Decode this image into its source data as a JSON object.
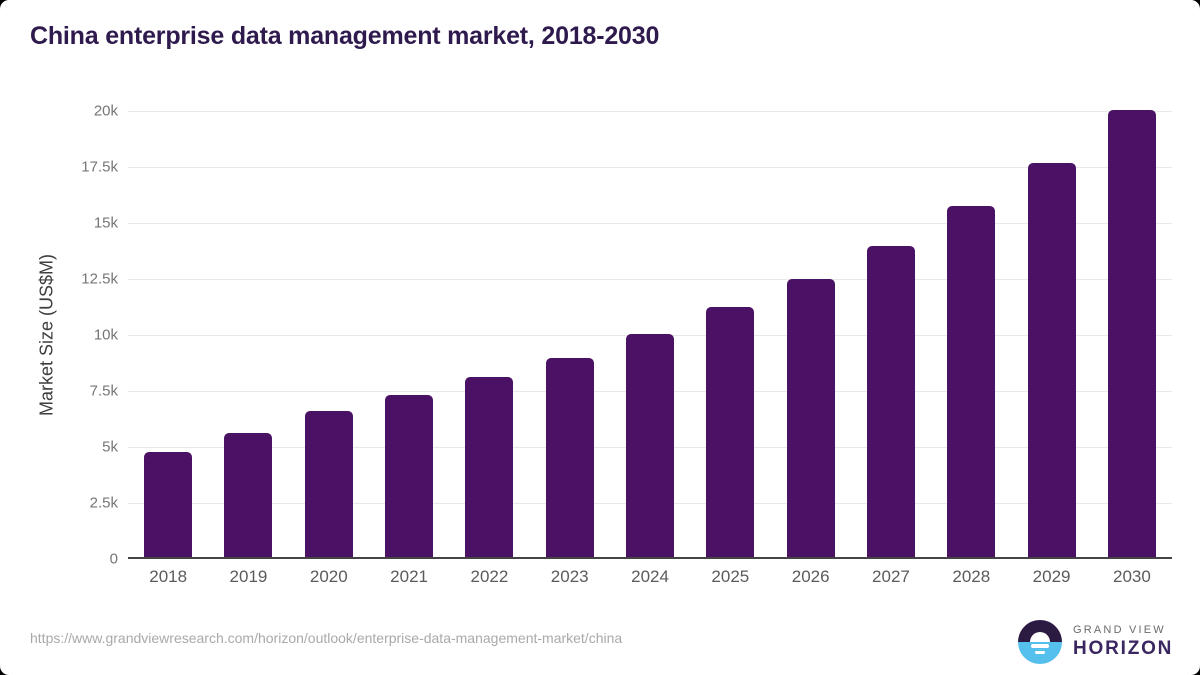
{
  "page": {
    "title": "China enterprise data management market, 2018-2030",
    "footer": {
      "source_url": "https://www.grandviewresearch.com/horizon/outlook/enterprise-data-management-market/china",
      "brand_line1": "GRAND VIEW",
      "brand_line2": "HORIZON"
    }
  },
  "colors": {
    "bar": "#4a1164",
    "title": "#2f1a4e",
    "grid": "#e8e8e8",
    "axis_line": "#444444",
    "y_tick": "#757575",
    "x_tick": "#5b5b5b",
    "url": "#a9a9a9",
    "logo_dark": "#2b1b43",
    "logo_blue": "#54c0eb",
    "brand_gray": "#6b6b6b",
    "brand_purple": "#3a2660"
  },
  "chart_data": {
    "type": "bar",
    "title": "China enterprise data management market, 2018-2030",
    "categories": [
      "2018",
      "2019",
      "2020",
      "2021",
      "2022",
      "2023",
      "2024",
      "2025",
      "2026",
      "2027",
      "2028",
      "2029",
      "2030"
    ],
    "values": [
      4700,
      5550,
      6500,
      7230,
      8050,
      8900,
      9950,
      11150,
      12400,
      13880,
      15650,
      17600,
      19950
    ],
    "xlabel": "",
    "ylabel": "Market Size (US$M)",
    "ylim": [
      0,
      20000
    ],
    "ytick_labels_top_to_bottom": [
      "20k",
      "17.5k",
      "15k",
      "12.5k",
      "10k",
      "7.5k",
      "5k",
      "2.5k",
      "0"
    ],
    "grid": true,
    "legend_position": "none"
  }
}
